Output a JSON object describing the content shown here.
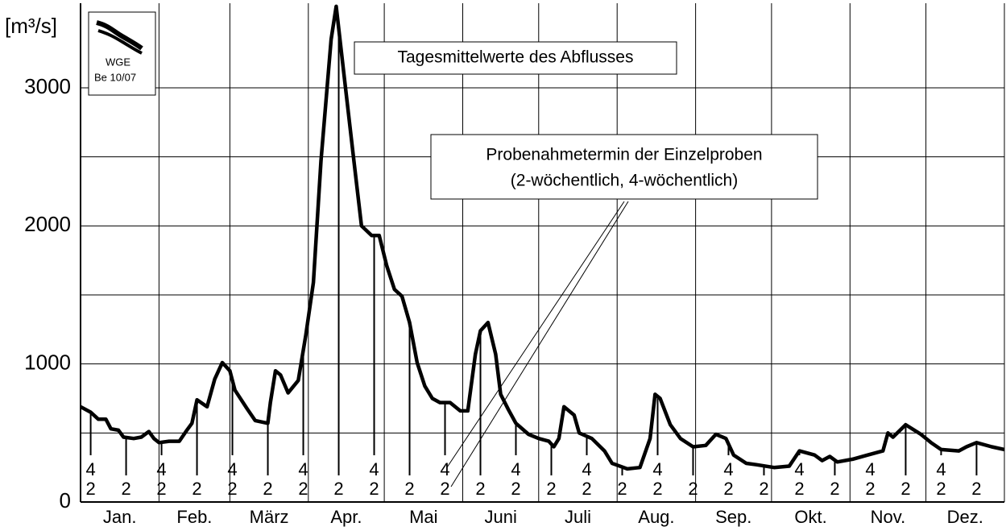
{
  "chart_data": {
    "type": "line",
    "ylabel": "[m³/s]",
    "xlim": [
      0,
      365
    ],
    "ylim": [
      0,
      3600
    ],
    "yticks": [
      0,
      1000,
      2000,
      3000
    ],
    "minor_yticks": [
      500,
      1500,
      2500
    ],
    "xticks": [
      0,
      31,
      59,
      90,
      120,
      151,
      181,
      212,
      243,
      273,
      304,
      334,
      365
    ],
    "categories": [
      "Jan.",
      "Feb.",
      "März",
      "Apr.",
      "Mai",
      "Juni",
      "Juli",
      "Aug.",
      "Sep.",
      "Okt.",
      "Nov.",
      "Dez."
    ],
    "grid": true,
    "x": [
      0,
      4,
      7,
      10,
      12,
      15,
      17,
      21,
      24,
      27,
      29,
      31,
      35,
      39,
      42,
      44,
      46,
      50,
      53,
      56,
      59,
      61,
      66,
      69,
      74,
      75,
      77,
      79,
      82,
      86,
      89,
      92,
      95,
      99,
      101,
      104,
      108,
      111,
      115,
      118,
      121,
      124,
      127,
      130,
      133,
      136,
      139,
      142,
      146,
      150,
      153,
      156,
      158,
      161,
      164,
      166,
      169,
      172,
      177,
      181,
      185,
      187,
      189,
      191,
      195,
      197,
      202,
      207,
      210,
      216,
      221,
      225,
      227,
      229,
      233,
      237,
      242,
      247,
      251,
      255,
      258,
      263,
      267,
      274,
      280,
      284,
      290,
      293,
      296,
      299,
      305,
      311,
      317,
      319,
      321,
      326,
      332,
      336,
      340,
      347,
      350,
      354,
      360,
      365
    ],
    "series": [
      {
        "name": "Tagesmittelwerte des Abflusses",
        "color": "#000000",
        "values": [
          690,
          650,
          600,
          600,
          530,
          520,
          470,
          460,
          470,
          510,
          460,
          430,
          440,
          440,
          520,
          570,
          740,
          690,
          890,
          1010,
          950,
          810,
          670,
          590,
          570,
          720,
          950,
          920,
          790,
          880,
          1210,
          1590,
          2470,
          3350,
          3590,
          3110,
          2470,
          2000,
          1930,
          1930,
          1710,
          1540,
          1490,
          1300,
          1010,
          840,
          750,
          720,
          720,
          660,
          660,
          1070,
          1240,
          1300,
          1070,
          780,
          670,
          570,
          490,
          460,
          440,
          400,
          460,
          690,
          630,
          500,
          460,
          370,
          280,
          240,
          250,
          460,
          780,
          750,
          560,
          460,
          400,
          410,
          490,
          460,
          340,
          280,
          270,
          250,
          260,
          370,
          340,
          300,
          330,
          290,
          310,
          340,
          370,
          500,
          470,
          560,
          490,
          430,
          380,
          370,
          400,
          430,
          400,
          380
        ]
      }
    ],
    "sample_note": [
      "Probenahmetermin der Einzelproben",
      "(2-wöchentlich, 4-wöchentlich)"
    ],
    "samples": {
      "x": [
        4,
        18,
        32,
        46,
        60,
        74,
        88,
        102,
        116,
        130,
        144,
        158,
        172,
        186,
        200,
        214,
        228,
        242,
        256,
        270,
        284,
        298,
        312,
        326,
        340,
        354
      ],
      "labels": [
        [
          "4",
          "2"
        ],
        [
          "2"
        ],
        [
          "4",
          "2"
        ],
        [
          "2"
        ],
        [
          "4",
          "2"
        ],
        [
          "2"
        ],
        [
          "4",
          "2"
        ],
        [
          "2"
        ],
        [
          "4",
          "2"
        ],
        [
          "2"
        ],
        [
          "4",
          "2"
        ],
        [
          "2"
        ],
        [
          "4",
          "2"
        ],
        [
          "2"
        ],
        [
          "4",
          "2"
        ],
        [
          "2"
        ],
        [
          "4",
          "2"
        ],
        [
          "2"
        ],
        [
          "4",
          "2"
        ],
        [
          "2"
        ],
        [
          "4",
          "2"
        ],
        [
          "2"
        ],
        [
          "4",
          "2"
        ],
        [
          "2"
        ],
        [
          "4",
          "2"
        ],
        [
          "2"
        ]
      ]
    }
  },
  "logo": {
    "name": "WGE",
    "code": "Be 10/07"
  }
}
